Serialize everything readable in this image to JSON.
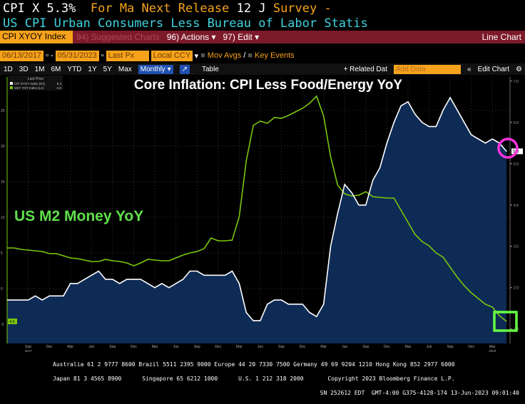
{
  "header": {
    "ticker": "CPI X",
    "value": "5.3%",
    "for": "For Ma",
    "next_release": "Next Release",
    "release_date": "12 J",
    "survey": "Survey -",
    "description": "US CPI Urban Consumers Less Bureau of Labor Statis"
  },
  "toolbar": {
    "security": "CPI XYOY Index",
    "suggested": "94) Suggested Charts",
    "actions": "96) Actions ▾",
    "edit": "97) Edit ▾",
    "chart_type": "Line Chart"
  },
  "controls": {
    "start_date": "06/13/2017",
    "end_date": "05/31/2023",
    "field": "Last Px",
    "currency": "Local CCY",
    "mov_avgs": "Mov Avgs",
    "key_events": "Key Events"
  },
  "periods": [
    "1D",
    "3D",
    "1M",
    "6M",
    "YTD",
    "1Y",
    "5Y",
    "Max"
  ],
  "period_select": "Monthly ▾",
  "table_label": "Table",
  "related": "+ Related Dat",
  "add_data_placeholder": "Add Data",
  "edit_chart": "Edit Chart",
  "footer": {
    "line1": "Australia 61 2 9777 8600 Brazil 5511 2395 9000 Europe 44 20 7330 7500 Germany 49 69 9204 1210 Hong Kong 852 2977 6000",
    "line2": "Japan 81 3 4565 8900      Singapore 65 6212 1000      U.S. 1 212 318 2000       Copyright 2023 Bloomberg Finance L.P.",
    "line3": "SN 252612 EDT  GMT-4:00 G375-4128-174 13-Jun-2023 09:01:40"
  },
  "chart_data": {
    "type": "line",
    "title": "Core Inflation: CPI Less Food/Energy YoY",
    "annotation": "US M2 Money YoY",
    "legend": {
      "header": "Last Price",
      "items": [
        {
          "label": "CPI XYOY Index (R1)",
          "last": "5.3",
          "color": "#ffffff"
        },
        {
          "label": "M2Y YOY Index (L1)",
          "last": "-4.6",
          "color": "#7ac70c"
        }
      ]
    },
    "x_start": "2017-06",
    "x_end": "2023-05",
    "frequency": "monthly",
    "x_tick_labels": [
      "Sep",
      "Dec",
      "Mar",
      "Jun",
      "Sep",
      "Dec",
      "Mar",
      "Jun",
      "Sep",
      "Dec",
      "Mar",
      "Jun",
      "Sep",
      "Dec",
      "Mar",
      "Jun",
      "Sep",
      "Dec",
      "Mar",
      "Jun",
      "Sep",
      "Dec",
      "Mar"
    ],
    "x_year_labels": {
      "first": "2017",
      "last": "2023"
    },
    "left_axis": {
      "ticks": [
        "25",
        "20",
        "15",
        "10",
        "5",
        "0",
        "-5"
      ],
      "range": [
        -7.7,
        29.7
      ]
    },
    "right_axis": {
      "ticks": [
        "7.0",
        "6.0",
        "5.0",
        "4.0",
        "3.0",
        "2.0",
        "1.0"
      ],
      "range": [
        0.65,
        7.1
      ]
    },
    "series": [
      {
        "name": "CPI XYOY Index",
        "axis": "right",
        "color": "#ffffff",
        "fill": "#0d2b55",
        "values": [
          1.7,
          1.7,
          1.7,
          1.7,
          1.8,
          1.7,
          1.8,
          1.8,
          1.8,
          2.1,
          2.1,
          2.2,
          2.3,
          2.4,
          2.2,
          2.2,
          2.1,
          2.2,
          2.2,
          2.2,
          2.1,
          2.0,
          2.1,
          2.0,
          2.1,
          2.2,
          2.4,
          2.4,
          2.3,
          2.3,
          2.3,
          2.3,
          2.4,
          2.1,
          1.4,
          1.2,
          1.2,
          1.6,
          1.7,
          1.7,
          1.6,
          1.6,
          1.6,
          1.4,
          1.3,
          1.6,
          3.0,
          3.8,
          4.5,
          4.3,
          4.0,
          4.0,
          4.6,
          4.9,
          5.5,
          6.0,
          6.4,
          6.5,
          6.2,
          6.0,
          5.9,
          5.9,
          6.3,
          6.6,
          6.3,
          6.0,
          5.7,
          5.6,
          5.5,
          5.6,
          5.5,
          5.3
        ]
      },
      {
        "name": "M2Y YOY Index",
        "axis": "left",
        "color": "#7ac70c",
        "values": [
          5.7,
          5.7,
          5.5,
          5.4,
          5.3,
          5.2,
          4.9,
          4.9,
          4.6,
          4.3,
          4.2,
          4.0,
          3.8,
          3.8,
          4.1,
          3.9,
          3.8,
          3.6,
          3.2,
          3.6,
          4.1,
          4.0,
          3.9,
          3.9,
          4.3,
          4.7,
          5.0,
          5.2,
          5.6,
          7.1,
          6.7,
          6.7,
          6.8,
          10.1,
          17.9,
          22.9,
          23.5,
          23.2,
          24.0,
          23.9,
          24.3,
          24.8,
          25.3,
          26.0,
          27.0,
          24.2,
          18.5,
          14.5,
          13.3,
          13.0,
          13.1,
          13.6,
          12.9,
          12.8,
          12.7,
          12.7,
          11.0,
          9.3,
          7.6,
          6.6,
          6.0,
          5.0,
          4.4,
          3.0,
          1.6,
          0.4,
          -0.6,
          -1.4,
          -2.2,
          -2.6,
          -3.8,
          -4.6
        ]
      }
    ],
    "last_value_labels": {
      "right": "5.3",
      "left": "-4.6"
    },
    "grid": true,
    "markers": [
      {
        "shape": "circle",
        "color": "#ff33dd",
        "target": "CPI XYOY Index last value"
      },
      {
        "shape": "square",
        "color": "#66ff44",
        "target": "M2Y YOY Index last value"
      }
    ]
  }
}
